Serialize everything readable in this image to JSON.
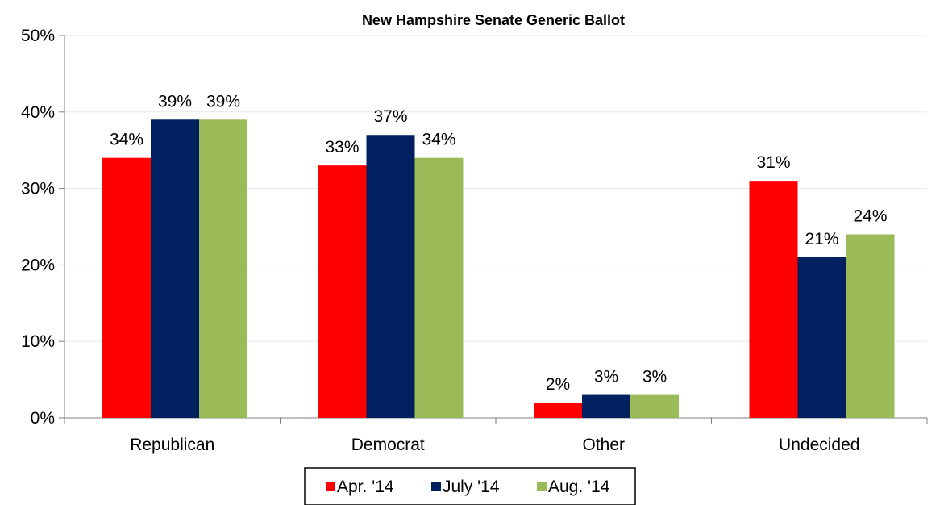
{
  "chart_data": {
    "type": "bar",
    "title": "New Hampshire Senate Generic Ballot",
    "xlabel": "",
    "ylabel": "",
    "categories": [
      "Republican",
      "Democrat",
      "Other",
      "Undecided"
    ],
    "series": [
      {
        "name": "Apr. '14",
        "color": "#ff0000",
        "values": [
          34,
          33,
          2,
          31
        ]
      },
      {
        "name": "July '14",
        "color": "#002060",
        "values": [
          39,
          37,
          3,
          21
        ]
      },
      {
        "name": "Aug. '14",
        "color": "#9bbb59",
        "values": [
          39,
          34,
          3,
          24
        ]
      }
    ],
    "ylim": [
      0,
      50
    ],
    "yticks": [
      0,
      10,
      20,
      30,
      40,
      50
    ],
    "ytick_labels": [
      "0%",
      "10%",
      "20%",
      "30%",
      "40%",
      "50%"
    ],
    "value_suffix": "%",
    "grid": true,
    "legend": "bottom"
  }
}
